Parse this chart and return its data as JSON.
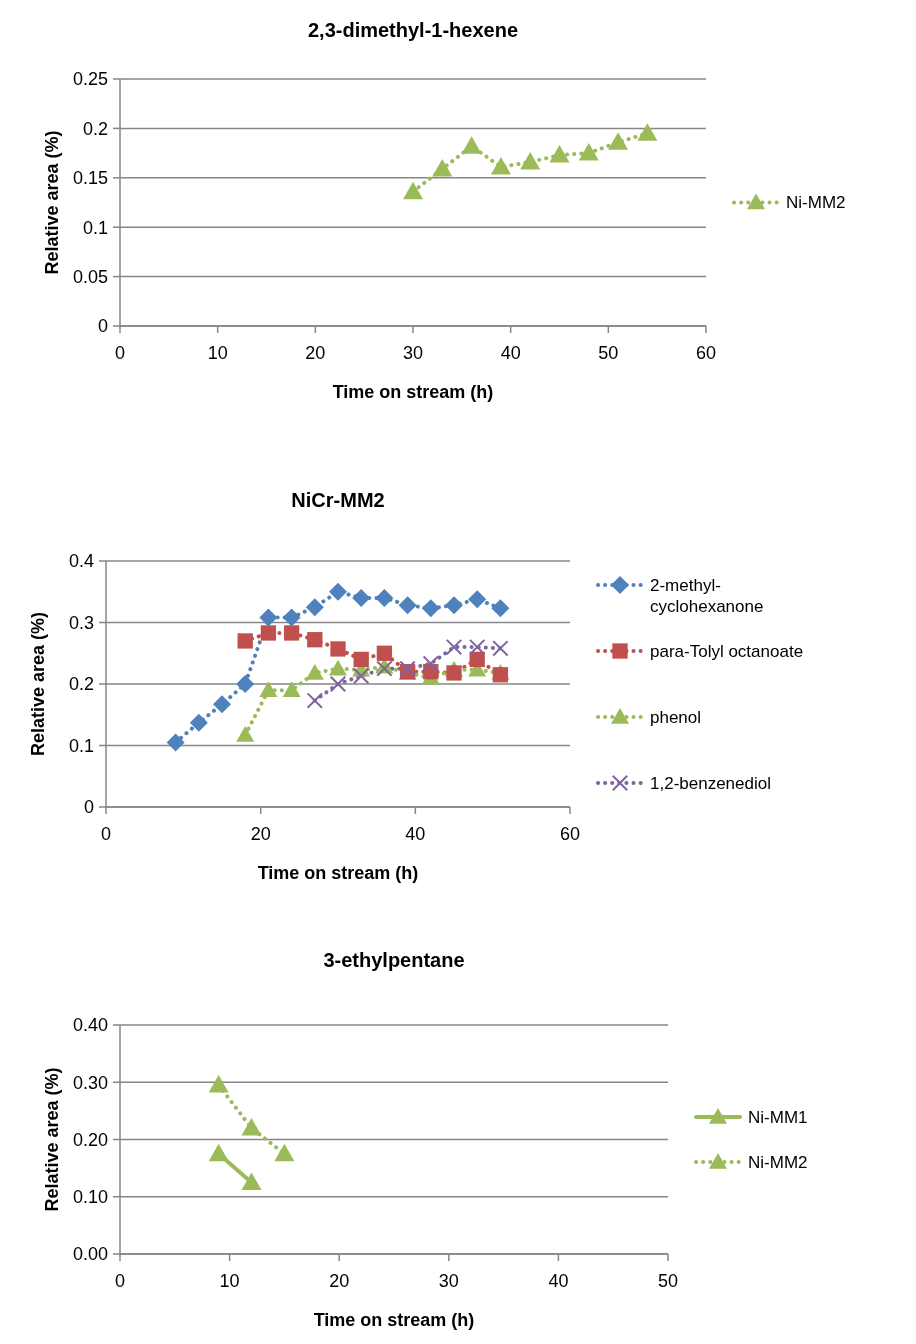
{
  "chart_data": [
    {
      "type": "line",
      "title": "2,3-dimethyl-1-hexene",
      "xlabel": "Time on stream (h)",
      "ylabel": "Relative area (%)",
      "xlim": [
        0,
        60
      ],
      "xticks": [
        0,
        10,
        20,
        30,
        40,
        50,
        60
      ],
      "ylim": [
        0,
        0.25
      ],
      "yticks": [
        0,
        0.05,
        0.1,
        0.15,
        0.2,
        0.25
      ],
      "grid": "y",
      "legend": "right",
      "series": [
        {
          "name": "Ni-MM2",
          "color": "#9bbb59",
          "marker": "triangle",
          "line_style": "dotted",
          "x": [
            30,
            33,
            36,
            39,
            42,
            45,
            48,
            51,
            54
          ],
          "values": [
            0.136,
            0.159,
            0.182,
            0.161,
            0.166,
            0.173,
            0.175,
            0.186,
            0.195
          ]
        }
      ]
    },
    {
      "type": "line",
      "title": "NiCr-MM2",
      "xlabel": "Time on stream (h)",
      "ylabel": "Relative area (%)",
      "xlim": [
        0,
        60
      ],
      "xticks": [
        0,
        20,
        40,
        60
      ],
      "ylim": [
        0,
        0.4
      ],
      "yticks": [
        0,
        0.1,
        0.2,
        0.3,
        0.4
      ],
      "grid": "y",
      "legend": "right",
      "series": [
        {
          "name": "2-methyl-cyclohexanone",
          "color": "#4f81bd",
          "marker": "diamond",
          "line_style": "dotted",
          "x": [
            9,
            12,
            15,
            18,
            21,
            24,
            27,
            30,
            33,
            36,
            39,
            42,
            45,
            48,
            51
          ],
          "values": [
            0.105,
            0.137,
            0.167,
            0.2,
            0.308,
            0.308,
            0.325,
            0.35,
            0.34,
            0.34,
            0.328,
            0.323,
            0.328,
            0.338,
            0.323
          ]
        },
        {
          "name": "para-Tolyl octanoate",
          "color": "#c0504d",
          "marker": "square",
          "line_style": "dotted",
          "x": [
            18,
            21,
            24,
            27,
            30,
            33,
            36,
            39,
            42,
            45,
            48,
            51
          ],
          "values": [
            0.27,
            0.283,
            0.283,
            0.272,
            0.257,
            0.24,
            0.25,
            0.22,
            0.22,
            0.218,
            0.24,
            0.215
          ]
        },
        {
          "name": "phenol",
          "color": "#9bbb59",
          "marker": "triangle",
          "line_style": "dotted",
          "x": [
            18,
            21,
            24,
            27,
            30,
            33,
            36,
            39,
            42,
            45,
            48,
            51
          ],
          "values": [
            0.117,
            0.19,
            0.19,
            0.218,
            0.225,
            0.223,
            0.228,
            0.218,
            0.21,
            0.223,
            0.223,
            0.218
          ]
        },
        {
          "name": "1,2-benzenediol",
          "color": "#8064a2",
          "marker": "cross",
          "line_style": "dotted",
          "x": [
            27,
            30,
            33,
            36,
            39,
            42,
            45,
            48,
            51
          ],
          "values": [
            0.173,
            0.2,
            0.213,
            0.225,
            0.225,
            0.233,
            0.26,
            0.26,
            0.258
          ]
        }
      ]
    },
    {
      "type": "line",
      "title": "3-ethylpentane",
      "xlabel": "Time on stream (h)",
      "ylabel": "Relative area (%)",
      "xlim": [
        0,
        50
      ],
      "xticks": [
        0,
        10,
        20,
        30,
        40,
        50
      ],
      "ylim": [
        0,
        0.4
      ],
      "yticks": [
        {
          "value": 0,
          "label": "0.00"
        },
        {
          "value": 0.1,
          "label": "0.10"
        },
        {
          "value": 0.2,
          "label": "0.20"
        },
        {
          "value": 0.3,
          "label": "0.30"
        },
        {
          "value": 0.4,
          "label": "0.40"
        }
      ],
      "grid": "y",
      "legend": "right",
      "series": [
        {
          "name": "Ni-MM1",
          "color": "#9bbb59",
          "marker": "triangle",
          "line_style": "solid",
          "x": [
            9,
            12
          ],
          "values": [
            0.175,
            0.125
          ]
        },
        {
          "name": "Ni-MM2",
          "color": "#9bbb59",
          "marker": "triangle",
          "line_style": "dotted",
          "x": [
            9,
            12,
            15
          ],
          "values": [
            0.295,
            0.22,
            0.175
          ]
        }
      ]
    }
  ]
}
